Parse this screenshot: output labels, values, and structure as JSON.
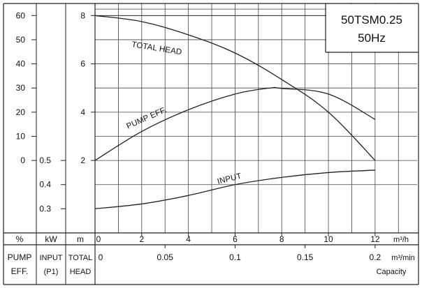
{
  "chart_data": {
    "type": "line",
    "title": "50TSM0.25",
    "subtitle": "50Hz",
    "x": {
      "label": "Capacity",
      "flow_m3h": {
        "unit": "m³/h",
        "ticks": [
          0,
          2,
          4,
          6,
          8,
          10,
          12
        ],
        "range": [
          0,
          13.8
        ]
      },
      "flow_m3min": {
        "unit": "m³/min",
        "ticks": [
          0,
          0.05,
          0.1,
          0.15,
          0.2
        ],
        "tick_labels": [
          "0",
          "0.05",
          "0.1",
          "0.15",
          "0.2"
        ]
      }
    },
    "y_axes": {
      "pump_eff": {
        "unit": "%",
        "name_lines": [
          "PUMP",
          "EFF."
        ],
        "ticks": [
          0,
          10,
          20,
          30,
          40,
          50,
          60
        ],
        "range": [
          -30,
          65
        ]
      },
      "input": {
        "unit": "kW",
        "name_lines": [
          "INPUT",
          "(P1)"
        ],
        "ticks": [
          0.3,
          0.4,
          0.5
        ],
        "tick_labels": [
          "0.3",
          "0.4",
          "0.5"
        ],
        "range": [
          0.2,
          1.15
        ]
      },
      "total_head": {
        "unit": "m",
        "name_lines": [
          "TOTAL",
          "HEAD"
        ],
        "ticks": [
          2,
          4,
          6,
          8
        ],
        "range": [
          -1,
          8.5
        ]
      }
    },
    "series": [
      {
        "name": "TOTAL HEAD",
        "axis": "total_head",
        "x": [
          0,
          2,
          4,
          6,
          8,
          10,
          12
        ],
        "y": [
          8.0,
          7.75,
          7.2,
          6.45,
          5.35,
          4.0,
          2.0
        ]
      },
      {
        "name": "PUMP EFF.",
        "axis": "pump_eff",
        "x": [
          0,
          2,
          4,
          6,
          7.5,
          8,
          10,
          12
        ],
        "y": [
          0,
          12,
          21,
          27.5,
          30,
          29.8,
          27.5,
          17
        ]
      },
      {
        "name": "INPUT",
        "axis": "input",
        "x": [
          0,
          2,
          4,
          6,
          8,
          10,
          12
        ],
        "y": [
          0.3,
          0.32,
          0.355,
          0.4,
          0.43,
          0.45,
          0.46
        ]
      }
    ],
    "grid": true
  }
}
